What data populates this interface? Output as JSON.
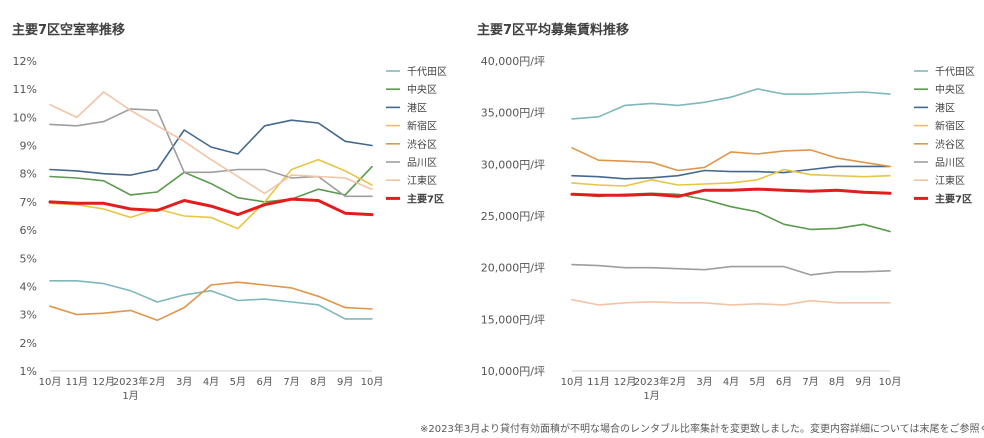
{
  "chart_data": [
    {
      "type": "line",
      "title": "主要7区空室率推移",
      "categories": [
        "10月",
        "11月",
        "12月",
        "2023年1月",
        "2月",
        "3月",
        "4月",
        "5月",
        "6月",
        "7月",
        "8月",
        "9月",
        "10月"
      ],
      "category_lines": [
        [
          "10月"
        ],
        [
          "11月"
        ],
        [
          "12月"
        ],
        [
          "2023年",
          "1月"
        ],
        [
          "2月"
        ],
        [
          "3月"
        ],
        [
          "4月"
        ],
        [
          "5月"
        ],
        [
          "6月"
        ],
        [
          "7月"
        ],
        [
          "8月"
        ],
        [
          "9月"
        ],
        [
          "10月"
        ]
      ],
      "y_ticks": [
        "1%",
        "2%",
        "3%",
        "4%",
        "5%",
        "6%",
        "7%",
        "8%",
        "9%",
        "10%",
        "11%",
        "12%"
      ],
      "ylim": [
        1,
        12
      ],
      "legend_position": "right",
      "grid": false,
      "series": [
        {
          "name": "千代田区",
          "color": "#7fb8bc",
          "values": [
            4.2,
            4.2,
            4.1,
            3.85,
            3.45,
            3.7,
            3.85,
            3.5,
            3.55,
            3.45,
            3.35,
            2.85,
            2.85
          ]
        },
        {
          "name": "中央区",
          "color": "#5a9a4e",
          "values": [
            7.9,
            7.85,
            7.75,
            7.25,
            7.35,
            8.05,
            7.65,
            7.15,
            7.0,
            7.1,
            7.45,
            7.25,
            8.25
          ]
        },
        {
          "name": "港区",
          "color": "#44698c",
          "values": [
            8.15,
            8.1,
            8.0,
            7.95,
            8.15,
            9.55,
            8.95,
            8.7,
            9.7,
            9.9,
            9.8,
            9.15,
            9.0
          ]
        },
        {
          "name": "新宿区",
          "color": "#e8c547",
          "values": [
            6.95,
            6.9,
            6.75,
            6.45,
            6.75,
            6.5,
            6.45,
            6.05,
            7.0,
            8.15,
            8.5,
            8.1,
            7.6
          ]
        },
        {
          "name": "渋谷区",
          "color": "#e0964a",
          "values": [
            3.3,
            3.0,
            3.05,
            3.15,
            2.8,
            3.25,
            4.05,
            4.15,
            4.05,
            3.95,
            3.65,
            3.25,
            3.2
          ]
        },
        {
          "name": "品川区",
          "color": "#9e9e9e",
          "values": [
            9.75,
            9.7,
            9.85,
            10.3,
            10.25,
            8.05,
            8.05,
            8.15,
            8.15,
            7.85,
            7.9,
            7.2,
            7.2
          ]
        },
        {
          "name": "江東区",
          "color": "#f3c3a6",
          "values": [
            10.45,
            10.0,
            10.9,
            10.25,
            9.7,
            9.15,
            8.5,
            7.9,
            7.3,
            7.95,
            7.9,
            7.85,
            7.45
          ]
        },
        {
          "name": "主要7区",
          "color": "#e31d1d",
          "bold": true,
          "values": [
            7.0,
            6.95,
            6.95,
            6.75,
            6.7,
            7.05,
            6.85,
            6.55,
            6.9,
            7.1,
            7.05,
            6.6,
            6.55
          ]
        }
      ]
    },
    {
      "type": "line",
      "title": "主要7区平均募集賃料推移",
      "categories": [
        "10月",
        "11月",
        "12月",
        "2023年1月",
        "2月",
        "3月",
        "4月",
        "5月",
        "6月",
        "7月",
        "8月",
        "9月",
        "10月"
      ],
      "category_lines": [
        [
          "10月"
        ],
        [
          "11月"
        ],
        [
          "12月"
        ],
        [
          "2023年",
          "1月"
        ],
        [
          "2月"
        ],
        [
          "3月"
        ],
        [
          "4月"
        ],
        [
          "5月"
        ],
        [
          "6月"
        ],
        [
          "7月"
        ],
        [
          "8月"
        ],
        [
          "9月"
        ],
        [
          "10月"
        ]
      ],
      "y_ticks": [
        "10,000円/坪",
        "15,000円/坪",
        "20,000円/坪",
        "25,000円/坪",
        "30,000円/坪",
        "35,000円/坪",
        "40,000円/坪"
      ],
      "ylim": [
        10000,
        40000
      ],
      "legend_position": "right",
      "grid": false,
      "series": [
        {
          "name": "千代田区",
          "color": "#7fb8bc",
          "values": [
            34400,
            34600,
            35700,
            35900,
            35700,
            36000,
            36500,
            37300,
            36800,
            36800,
            36900,
            37000,
            36800
          ]
        },
        {
          "name": "中央区",
          "color": "#5a9a4e",
          "values": [
            27100,
            26900,
            27100,
            27200,
            27100,
            26600,
            25900,
            25400,
            24200,
            23700,
            23800,
            24200,
            23500
          ]
        },
        {
          "name": "港区",
          "color": "#44698c",
          "values": [
            28900,
            28800,
            28600,
            28700,
            28900,
            29400,
            29300,
            29300,
            29200,
            29500,
            29800,
            29800,
            29800
          ]
        },
        {
          "name": "新宿区",
          "color": "#e8c547",
          "values": [
            28200,
            28000,
            27900,
            28500,
            28000,
            28100,
            28200,
            28500,
            29500,
            29000,
            28900,
            28800,
            28900
          ]
        },
        {
          "name": "渋谷区",
          "color": "#e0964a",
          "values": [
            31600,
            30400,
            30300,
            30200,
            29400,
            29700,
            31200,
            31000,
            31300,
            31400,
            30600,
            30200,
            29800
          ]
        },
        {
          "name": "品川区",
          "color": "#9e9e9e",
          "values": [
            20300,
            20200,
            20000,
            20000,
            19900,
            19800,
            20100,
            20100,
            20100,
            19300,
            19600,
            19600,
            19700
          ]
        },
        {
          "name": "江東区",
          "color": "#f3c3a6",
          "values": [
            16900,
            16400,
            16600,
            16700,
            16600,
            16600,
            16400,
            16500,
            16400,
            16800,
            16600,
            16600,
            16600
          ]
        },
        {
          "name": "主要7区",
          "color": "#e31d1d",
          "bold": true,
          "values": [
            27100,
            27000,
            27000,
            27100,
            26900,
            27500,
            27500,
            27600,
            27500,
            27400,
            27500,
            27300,
            27200
          ]
        }
      ]
    }
  ],
  "footnote": "※2023年3月より貸付有効面積が不明な場合のレンタブル比率集計を変更致しました。変更内容詳細については末尾をご参照ください。"
}
